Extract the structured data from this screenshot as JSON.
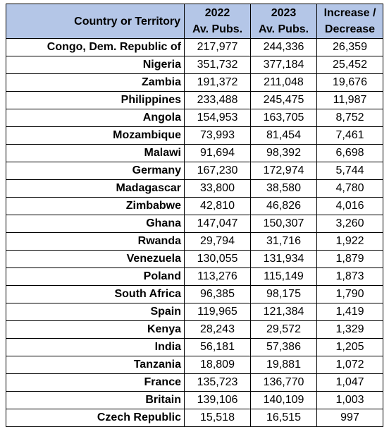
{
  "table": {
    "headers": {
      "country": "Country or Territory",
      "y2022": [
        "2022",
        "Av. Pubs."
      ],
      "y2023": [
        "2023",
        "Av. Pubs."
      ],
      "change": [
        "Increase /",
        "Decrease"
      ]
    },
    "rows": [
      {
        "country": "Congo, Dem. Republic of",
        "y2022": "217,977",
        "y2023": "244,336",
        "change": "26,359"
      },
      {
        "country": "Nigeria",
        "y2022": "351,732",
        "y2023": "377,184",
        "change": "25,452"
      },
      {
        "country": "Zambia",
        "y2022": "191,372",
        "y2023": "211,048",
        "change": "19,676"
      },
      {
        "country": "Philippines",
        "y2022": "233,488",
        "y2023": "245,475",
        "change": "11,987"
      },
      {
        "country": "Angola",
        "y2022": "154,953",
        "y2023": "163,705",
        "change": "8,752"
      },
      {
        "country": "Mozambique",
        "y2022": "73,993",
        "y2023": "81,454",
        "change": "7,461"
      },
      {
        "country": "Malawi",
        "y2022": "91,694",
        "y2023": "98,392",
        "change": "6,698"
      },
      {
        "country": "Germany",
        "y2022": "167,230",
        "y2023": "172,974",
        "change": "5,744"
      },
      {
        "country": "Madagascar",
        "y2022": "33,800",
        "y2023": "38,580",
        "change": "4,780"
      },
      {
        "country": "Zimbabwe",
        "y2022": "42,810",
        "y2023": "46,826",
        "change": "4,016"
      },
      {
        "country": "Ghana",
        "y2022": "147,047",
        "y2023": "150,307",
        "change": "3,260"
      },
      {
        "country": "Rwanda",
        "y2022": "29,794",
        "y2023": "31,716",
        "change": "1,922"
      },
      {
        "country": "Venezuela",
        "y2022": "130,055",
        "y2023": "131,934",
        "change": "1,879"
      },
      {
        "country": "Poland",
        "y2022": "113,276",
        "y2023": "115,149",
        "change": "1,873"
      },
      {
        "country": "South Africa",
        "y2022": "96,385",
        "y2023": "98,175",
        "change": "1,790"
      },
      {
        "country": "Spain",
        "y2022": "119,965",
        "y2023": "121,384",
        "change": "1,419"
      },
      {
        "country": "Kenya",
        "y2022": "28,243",
        "y2023": "29,572",
        "change": "1,329"
      },
      {
        "country": "India",
        "y2022": "56,181",
        "y2023": "57,386",
        "change": "1,205"
      },
      {
        "country": "Tanzania",
        "y2022": "18,809",
        "y2023": "19,881",
        "change": "1,072"
      },
      {
        "country": "France",
        "y2022": "135,723",
        "y2023": "136,770",
        "change": "1,047"
      },
      {
        "country": "Britain",
        "y2022": "139,106",
        "y2023": "140,109",
        "change": "1,003"
      },
      {
        "country": "Czech Republic",
        "y2022": "15,518",
        "y2023": "16,515",
        "change": "997"
      }
    ]
  },
  "colors": {
    "header_fill": "#b4c6e7",
    "border": "#000000",
    "text": "#000000"
  }
}
